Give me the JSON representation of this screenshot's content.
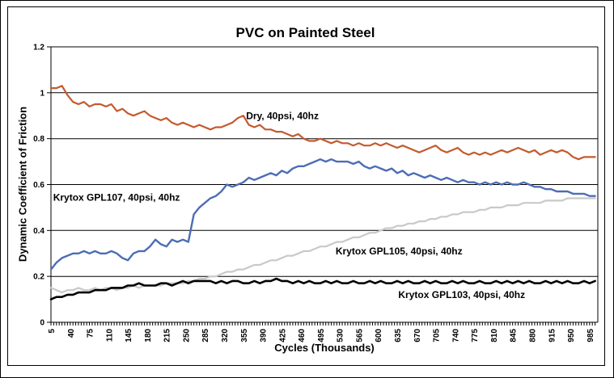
{
  "chart_data": {
    "type": "line",
    "title": "PVC on Painted Steel",
    "xlabel": "Cycles (Thousands)",
    "ylabel": "Dynamic Coefficient of Friction",
    "xlim": [
      5,
      1000
    ],
    "ylim": [
      0,
      1.2
    ],
    "grid": "horizontal-black",
    "legend_position": "none (labels annotated inside plot)",
    "background": "#FFFFFF",
    "axis_color": "#000000",
    "y_ticks": [
      0,
      0.2,
      0.4,
      0.6,
      0.8,
      1,
      1.2
    ],
    "y_tick_labels": [
      "0",
      "0.2",
      "0.4",
      "0.6",
      "0.8",
      "1",
      "1.2"
    ],
    "x_tick_labels": [
      5,
      40,
      75,
      110,
      145,
      180,
      215,
      250,
      285,
      320,
      355,
      390,
      425,
      460,
      495,
      530,
      565,
      600,
      635,
      670,
      705,
      740,
      775,
      810,
      845,
      880,
      915,
      950,
      985
    ],
    "x_minor_step": 5,
    "x_minor_max": 995,
    "x": [
      5,
      15,
      25,
      35,
      45,
      55,
      65,
      75,
      85,
      95,
      105,
      115,
      125,
      135,
      145,
      155,
      165,
      175,
      185,
      195,
      205,
      215,
      225,
      235,
      245,
      255,
      265,
      275,
      285,
      295,
      305,
      315,
      325,
      335,
      345,
      355,
      365,
      375,
      385,
      395,
      405,
      415,
      425,
      435,
      445,
      455,
      465,
      475,
      485,
      495,
      505,
      515,
      525,
      535,
      545,
      555,
      565,
      575,
      585,
      595,
      605,
      615,
      625,
      635,
      645,
      655,
      665,
      675,
      685,
      695,
      705,
      715,
      725,
      735,
      745,
      755,
      765,
      775,
      785,
      795,
      805,
      815,
      825,
      835,
      845,
      855,
      865,
      875,
      885,
      895,
      905,
      915,
      925,
      935,
      945,
      955,
      965,
      975,
      985,
      995
    ],
    "series": [
      {
        "id": "gpl105",
        "name": "Krytox GPL105, 40psi, 40hz",
        "color": "#C9C9C9",
        "stroke_width": 2.2,
        "values": [
          0.15,
          0.14,
          0.13,
          0.14,
          0.14,
          0.15,
          0.14,
          0.14,
          0.15,
          0.14,
          0.15,
          0.15,
          0.14,
          0.15,
          0.15,
          0.16,
          0.15,
          0.16,
          0.16,
          0.16,
          0.16,
          0.17,
          0.17,
          0.17,
          0.17,
          0.18,
          0.18,
          0.19,
          0.19,
          0.2,
          0.2,
          0.21,
          0.22,
          0.22,
          0.23,
          0.23,
          0.24,
          0.25,
          0.25,
          0.26,
          0.27,
          0.27,
          0.28,
          0.29,
          0.29,
          0.3,
          0.31,
          0.31,
          0.32,
          0.33,
          0.33,
          0.34,
          0.35,
          0.35,
          0.36,
          0.37,
          0.37,
          0.38,
          0.39,
          0.39,
          0.4,
          0.41,
          0.41,
          0.42,
          0.42,
          0.43,
          0.43,
          0.44,
          0.44,
          0.45,
          0.45,
          0.46,
          0.46,
          0.47,
          0.47,
          0.48,
          0.48,
          0.48,
          0.49,
          0.49,
          0.5,
          0.5,
          0.5,
          0.51,
          0.51,
          0.51,
          0.52,
          0.52,
          0.52,
          0.52,
          0.53,
          0.53,
          0.53,
          0.53,
          0.54,
          0.54,
          0.54,
          0.54,
          0.54,
          0.54
        ]
      },
      {
        "id": "gpl103",
        "name": "Krytox GPL103, 40psi, 40hz",
        "color": "#000000",
        "stroke_width": 2.6,
        "values": [
          0.1,
          0.11,
          0.11,
          0.12,
          0.12,
          0.13,
          0.13,
          0.13,
          0.14,
          0.14,
          0.14,
          0.15,
          0.15,
          0.15,
          0.16,
          0.16,
          0.17,
          0.16,
          0.16,
          0.16,
          0.17,
          0.17,
          0.16,
          0.17,
          0.18,
          0.17,
          0.18,
          0.18,
          0.18,
          0.18,
          0.17,
          0.18,
          0.17,
          0.18,
          0.18,
          0.17,
          0.17,
          0.18,
          0.17,
          0.18,
          0.18,
          0.19,
          0.18,
          0.18,
          0.17,
          0.18,
          0.17,
          0.18,
          0.17,
          0.17,
          0.18,
          0.17,
          0.18,
          0.17,
          0.17,
          0.18,
          0.17,
          0.17,
          0.18,
          0.17,
          0.18,
          0.17,
          0.17,
          0.18,
          0.17,
          0.18,
          0.17,
          0.17,
          0.18,
          0.17,
          0.18,
          0.17,
          0.17,
          0.18,
          0.17,
          0.18,
          0.17,
          0.17,
          0.18,
          0.17,
          0.17,
          0.18,
          0.17,
          0.18,
          0.17,
          0.18,
          0.17,
          0.18,
          0.17,
          0.17,
          0.18,
          0.17,
          0.18,
          0.17,
          0.18,
          0.17,
          0.17,
          0.18,
          0.17,
          0.18
        ]
      },
      {
        "id": "gpl107",
        "name": "Krytox GPL107, 40psi, 40hz",
        "color": "#4C6DB5",
        "stroke_width": 2.4,
        "values": [
          0.23,
          0.26,
          0.28,
          0.29,
          0.3,
          0.3,
          0.31,
          0.3,
          0.31,
          0.3,
          0.3,
          0.31,
          0.3,
          0.28,
          0.27,
          0.3,
          0.31,
          0.31,
          0.33,
          0.36,
          0.34,
          0.33,
          0.36,
          0.35,
          0.36,
          0.35,
          0.47,
          0.5,
          0.52,
          0.54,
          0.55,
          0.57,
          0.6,
          0.59,
          0.6,
          0.61,
          0.63,
          0.62,
          0.63,
          0.64,
          0.65,
          0.64,
          0.66,
          0.65,
          0.67,
          0.68,
          0.68,
          0.69,
          0.7,
          0.71,
          0.7,
          0.71,
          0.7,
          0.7,
          0.7,
          0.69,
          0.7,
          0.68,
          0.67,
          0.68,
          0.67,
          0.66,
          0.67,
          0.65,
          0.66,
          0.64,
          0.65,
          0.64,
          0.63,
          0.64,
          0.63,
          0.62,
          0.63,
          0.62,
          0.61,
          0.62,
          0.61,
          0.61,
          0.6,
          0.61,
          0.6,
          0.61,
          0.6,
          0.61,
          0.6,
          0.6,
          0.61,
          0.6,
          0.59,
          0.59,
          0.58,
          0.58,
          0.57,
          0.57,
          0.57,
          0.56,
          0.56,
          0.56,
          0.55,
          0.55
        ]
      },
      {
        "id": "dry",
        "name": "Dry, 40psi, 40hz",
        "color": "#C45A2E",
        "stroke_width": 2.2,
        "values": [
          1.02,
          1.02,
          1.03,
          0.99,
          0.96,
          0.95,
          0.96,
          0.94,
          0.95,
          0.95,
          0.94,
          0.95,
          0.92,
          0.93,
          0.91,
          0.9,
          0.91,
          0.92,
          0.9,
          0.89,
          0.88,
          0.89,
          0.87,
          0.86,
          0.87,
          0.86,
          0.85,
          0.86,
          0.85,
          0.84,
          0.85,
          0.85,
          0.86,
          0.87,
          0.89,
          0.9,
          0.86,
          0.85,
          0.86,
          0.84,
          0.84,
          0.83,
          0.83,
          0.82,
          0.81,
          0.82,
          0.8,
          0.79,
          0.79,
          0.8,
          0.79,
          0.78,
          0.79,
          0.78,
          0.78,
          0.77,
          0.78,
          0.77,
          0.77,
          0.78,
          0.77,
          0.78,
          0.77,
          0.76,
          0.77,
          0.76,
          0.75,
          0.74,
          0.75,
          0.76,
          0.77,
          0.75,
          0.74,
          0.75,
          0.76,
          0.74,
          0.73,
          0.74,
          0.73,
          0.74,
          0.73,
          0.74,
          0.75,
          0.74,
          0.75,
          0.76,
          0.75,
          0.74,
          0.75,
          0.73,
          0.74,
          0.75,
          0.74,
          0.75,
          0.74,
          0.72,
          0.71,
          0.72,
          0.72,
          0.72
        ]
      }
    ],
    "annotations": [
      {
        "id": "dry",
        "text": "Dry, 40psi, 40hz",
        "x": 360,
        "y": 0.885
      },
      {
        "id": "gpl107",
        "text": "Krytox GPL107, 40psi, 40hz",
        "x": 9,
        "y": 0.53
      },
      {
        "id": "gpl105",
        "text": "Krytox GPL105, 40psi, 40hz",
        "x": 523,
        "y": 0.295
      },
      {
        "id": "gpl103",
        "text": "Krytox GPL103, 40psi, 40hz",
        "x": 637,
        "y": 0.105
      }
    ]
  }
}
